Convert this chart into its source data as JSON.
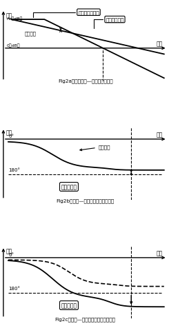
{
  "fig_width": 2.45,
  "fig_height": 4.77,
  "dpi": 100,
  "bg_color": "#ffffff",
  "caption2a": "FIg2a．电压增益—频率特性曲线图",
  "caption2b": "FIg2b．相位—频率特性曲线图：稳定",
  "caption2c": "FIg2c．相位—频率特性曲线图：不稳定",
  "label_gain": "增益",
  "label_phase": "相位",
  "label_freq": "频率",
  "label_av_db": "Av（dB）",
  "label_0db": "0（dB）",
  "label_0deg": "0°",
  "label_180deg": "180°",
  "label_opamp_gain": "运算放大器增益",
  "label_feedback_gain": "反馈后的增益",
  "label_loop_gain": "环路增益",
  "label_phase_delay": "位置延迟",
  "label_has_margin": "有相位裕度",
  "label_no_margin": "无相位裕度"
}
